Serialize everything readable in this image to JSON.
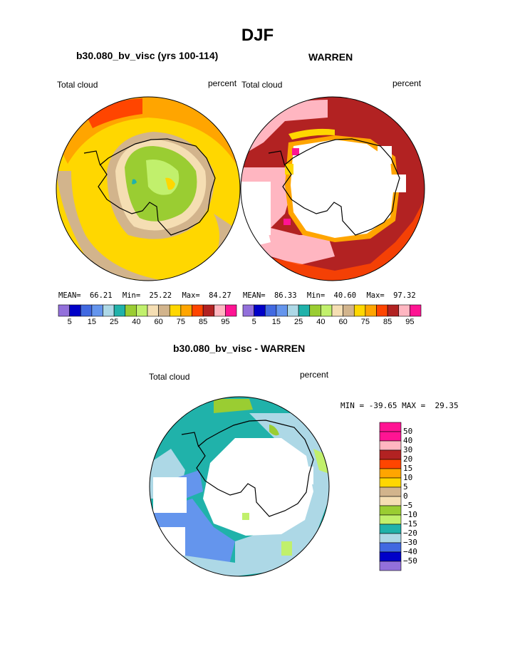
{
  "page": {
    "title": "DJF"
  },
  "panel_left": {
    "case_label": "b30.080_bv_visc (yrs 100-114)",
    "variable": "Total cloud",
    "units": "percent",
    "stats": {
      "mean_label": "MEAN=",
      "mean": "66.21",
      "min_label": "Min=",
      "min": "25.22",
      "max_label": "Max=",
      "max": "84.27"
    }
  },
  "panel_right": {
    "case_label": "WARREN",
    "variable": "Total cloud",
    "units": "percent",
    "stats": {
      "mean_label": "MEAN=",
      "mean": "86.33",
      "min_label": "Min=",
      "min": "40.60",
      "max_label": "Max=",
      "max": "97.32"
    }
  },
  "abs_colorbar": {
    "tick_labels": [
      "5",
      "15",
      "25",
      "40",
      "60",
      "75",
      "85",
      "95"
    ],
    "colors": [
      "#9370db",
      "#0000c8",
      "#4169e1",
      "#6495ed",
      "#add8e6",
      "#20b2aa",
      "#9acd32",
      "#c1f06c",
      "#f5deb3",
      "#d2b48c",
      "#ffd700",
      "#ffa500",
      "#ff4500",
      "#b22222",
      "#ffb6c1",
      "#ff1493"
    ]
  },
  "panel_diff": {
    "case_label": "b30.080_bv_visc - WARREN",
    "variable": "Total cloud",
    "units": "percent",
    "stats_text": "MIN = -39.65 MAX =  29.35"
  },
  "diff_colorbar": {
    "levels": [
      "50",
      "40",
      "30",
      "20",
      "15",
      "10",
      "5",
      "0",
      "−5",
      "−10",
      "−15",
      "−20",
      "−30",
      "−40",
      "−50"
    ],
    "colors": [
      "#ff1493",
      "#ffb6c1",
      "#b22222",
      "#ff4500",
      "#ffa500",
      "#ffd700",
      "#d2b48c",
      "#f5deb3",
      "#9acd32",
      "#c1f06c",
      "#20b2aa",
      "#add8e6",
      "#4169e1",
      "#0000c8",
      "#9370db"
    ]
  }
}
